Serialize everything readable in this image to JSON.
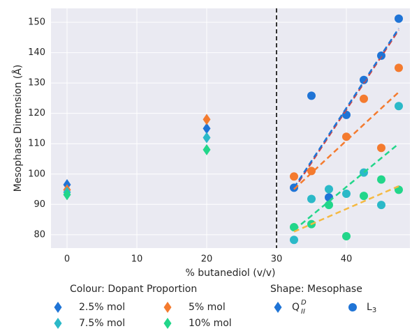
{
  "chart_data": {
    "type": "scatter",
    "xlabel": "% butanediol (v/v)",
    "ylabel": "Mesophase Dimension (Å)",
    "xlim": [
      -2.3,
      49.1
    ],
    "ylim": [
      75.6,
      154.6
    ],
    "xticks": [
      0,
      10,
      20,
      30,
      40
    ],
    "yticks": [
      80,
      90,
      100,
      110,
      120,
      130,
      140,
      150
    ],
    "grid": true,
    "reference_line_x": 30,
    "series": [
      {
        "name": "2.5% mol",
        "color": "#1f74d6",
        "x": [
          0,
          20,
          32.5,
          35,
          37.5,
          40,
          42.5,
          45,
          47.5
        ],
        "values": [
          96.5,
          115,
          95.5,
          125.8,
          92.3,
          119.5,
          131,
          139,
          151.2
        ],
        "markers": [
          "diamond",
          "diamond",
          "circle",
          "circle",
          "circle",
          "circle",
          "circle",
          "circle",
          "circle"
        ]
      },
      {
        "name": "5% mol",
        "color": "#f47b2f",
        "x": [
          0,
          20,
          32.5,
          35,
          40,
          42.5,
          45,
          47.5
        ],
        "values": [
          94.8,
          118,
          99.2,
          101,
          112.3,
          124.8,
          108.6,
          135
        ],
        "markers": [
          "diamond",
          "diamond",
          "circle",
          "circle",
          "circle",
          "circle",
          "circle",
          "circle"
        ]
      },
      {
        "name": "7.5% mol",
        "color": "#2bb9c8",
        "x": [
          0,
          20,
          32.5,
          35,
          37.5,
          40,
          42.5,
          45,
          47.5
        ],
        "values": [
          94,
          112,
          78.3,
          91.8,
          95,
          93.5,
          100.5,
          89.8,
          122.4
        ],
        "markers": [
          "diamond",
          "diamond",
          "circle",
          "circle",
          "circle",
          "circle",
          "circle",
          "circle",
          "circle"
        ]
      },
      {
        "name": "10% mol",
        "color": "#22d68a",
        "x": [
          0,
          20,
          32.5,
          35,
          37.5,
          40,
          42.5,
          45,
          47.5
        ],
        "values": [
          93.2,
          108,
          82.5,
          83.5,
          89.8,
          79.5,
          92.8,
          98.2,
          94.8
        ],
        "markers": [
          "diamond",
          "diamond",
          "circle",
          "circle",
          "circle",
          "circle",
          "circle",
          "circle",
          "circle"
        ]
      }
    ],
    "fits": [
      {
        "color": "#d9443f",
        "x": [
          32.5,
          47.5
        ],
        "values": [
          95,
          147.5
        ]
      },
      {
        "color": "#1f74d6",
        "x": [
          32.5,
          47.5
        ],
        "values": [
          95.5,
          148
        ]
      },
      {
        "color": "#f47b2f",
        "x": [
          32.5,
          47.5
        ],
        "values": [
          95,
          127
        ]
      },
      {
        "color": "#22d68a",
        "x": [
          32.5,
          47.5
        ],
        "values": [
          81.5,
          110
        ]
      },
      {
        "color": "#f5b942",
        "x": [
          32.5,
          47.5
        ],
        "values": [
          81,
          96
        ]
      }
    ],
    "legend": {
      "colour_title": "Colour: Dopant Proportion",
      "shape_title": "Shape: Mesophase",
      "shapes": [
        {
          "base": "Q",
          "sup": "D",
          "sub": "II",
          "marker": "diamond",
          "color": "#1f74d6"
        },
        {
          "base": "L",
          "sub": "3",
          "marker": "circle",
          "color": "#1f74d6"
        }
      ]
    }
  }
}
